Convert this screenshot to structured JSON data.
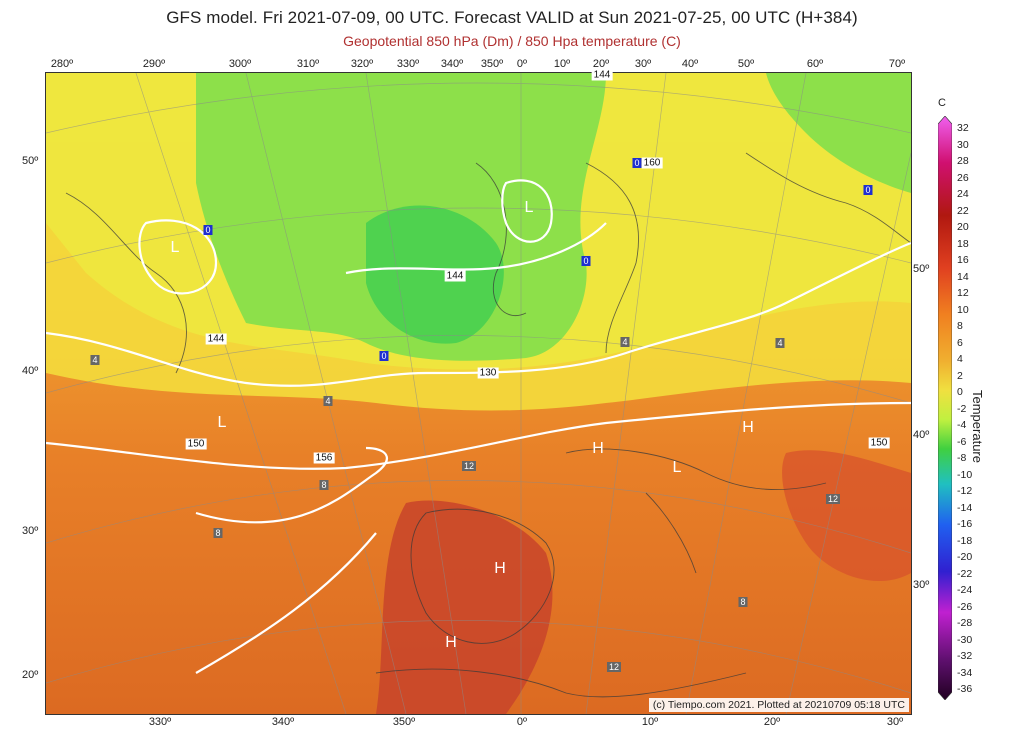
{
  "header": {
    "title": "GFS model. Fri 2021-07-09, 00 UTC. Forecast VALID at Sun 2021-07-25, 00 UTC (H+384)",
    "subtitle": "Geopotential 850 hPa (Dm) / 850 Hpa temperature (C)"
  },
  "axes": {
    "top": [
      "280º",
      "290º",
      "300º",
      "310º",
      "320º",
      "330º",
      "340º",
      "350º",
      "0º",
      "10º",
      "20º",
      "30º",
      "40º",
      "50º",
      "60º",
      "70º"
    ],
    "bottom": [
      "330º",
      "340º",
      "350º",
      "0º",
      "10º",
      "20º",
      "30º"
    ],
    "left": [
      "50º",
      "40º",
      "30º",
      "20º"
    ],
    "right": [
      "50º",
      "40º",
      "30º"
    ]
  },
  "legend": {
    "unit": "C",
    "title": "Temperature",
    "values": [
      "32",
      "30",
      "28",
      "26",
      "24",
      "22",
      "20",
      "18",
      "16",
      "14",
      "12",
      "10",
      "8",
      "6",
      "4",
      "2",
      "0",
      "-2",
      "-4",
      "-6",
      "-8",
      "-10",
      "-12",
      "-14",
      "-16",
      "-18",
      "-20",
      "-22",
      "-24",
      "-26",
      "-28",
      "-30",
      "-32",
      "-34",
      "-36"
    ]
  },
  "credit": "(c) Tiempo.com 2021. Plotted at 20210709 05:18 UTC",
  "isolines": [
    "144",
    "144",
    "150",
    "156",
    "150",
    "150",
    "130",
    "144",
    "160"
  ],
  "pressure_centers": [
    "L",
    "L",
    "L",
    "H",
    "H",
    "L",
    "H",
    "H"
  ],
  "temp_badges": [
    "4",
    "4",
    "8",
    "8",
    "12",
    "4",
    "4",
    "12",
    "8",
    "12",
    "0",
    "0",
    "0",
    "0",
    "0"
  ]
}
